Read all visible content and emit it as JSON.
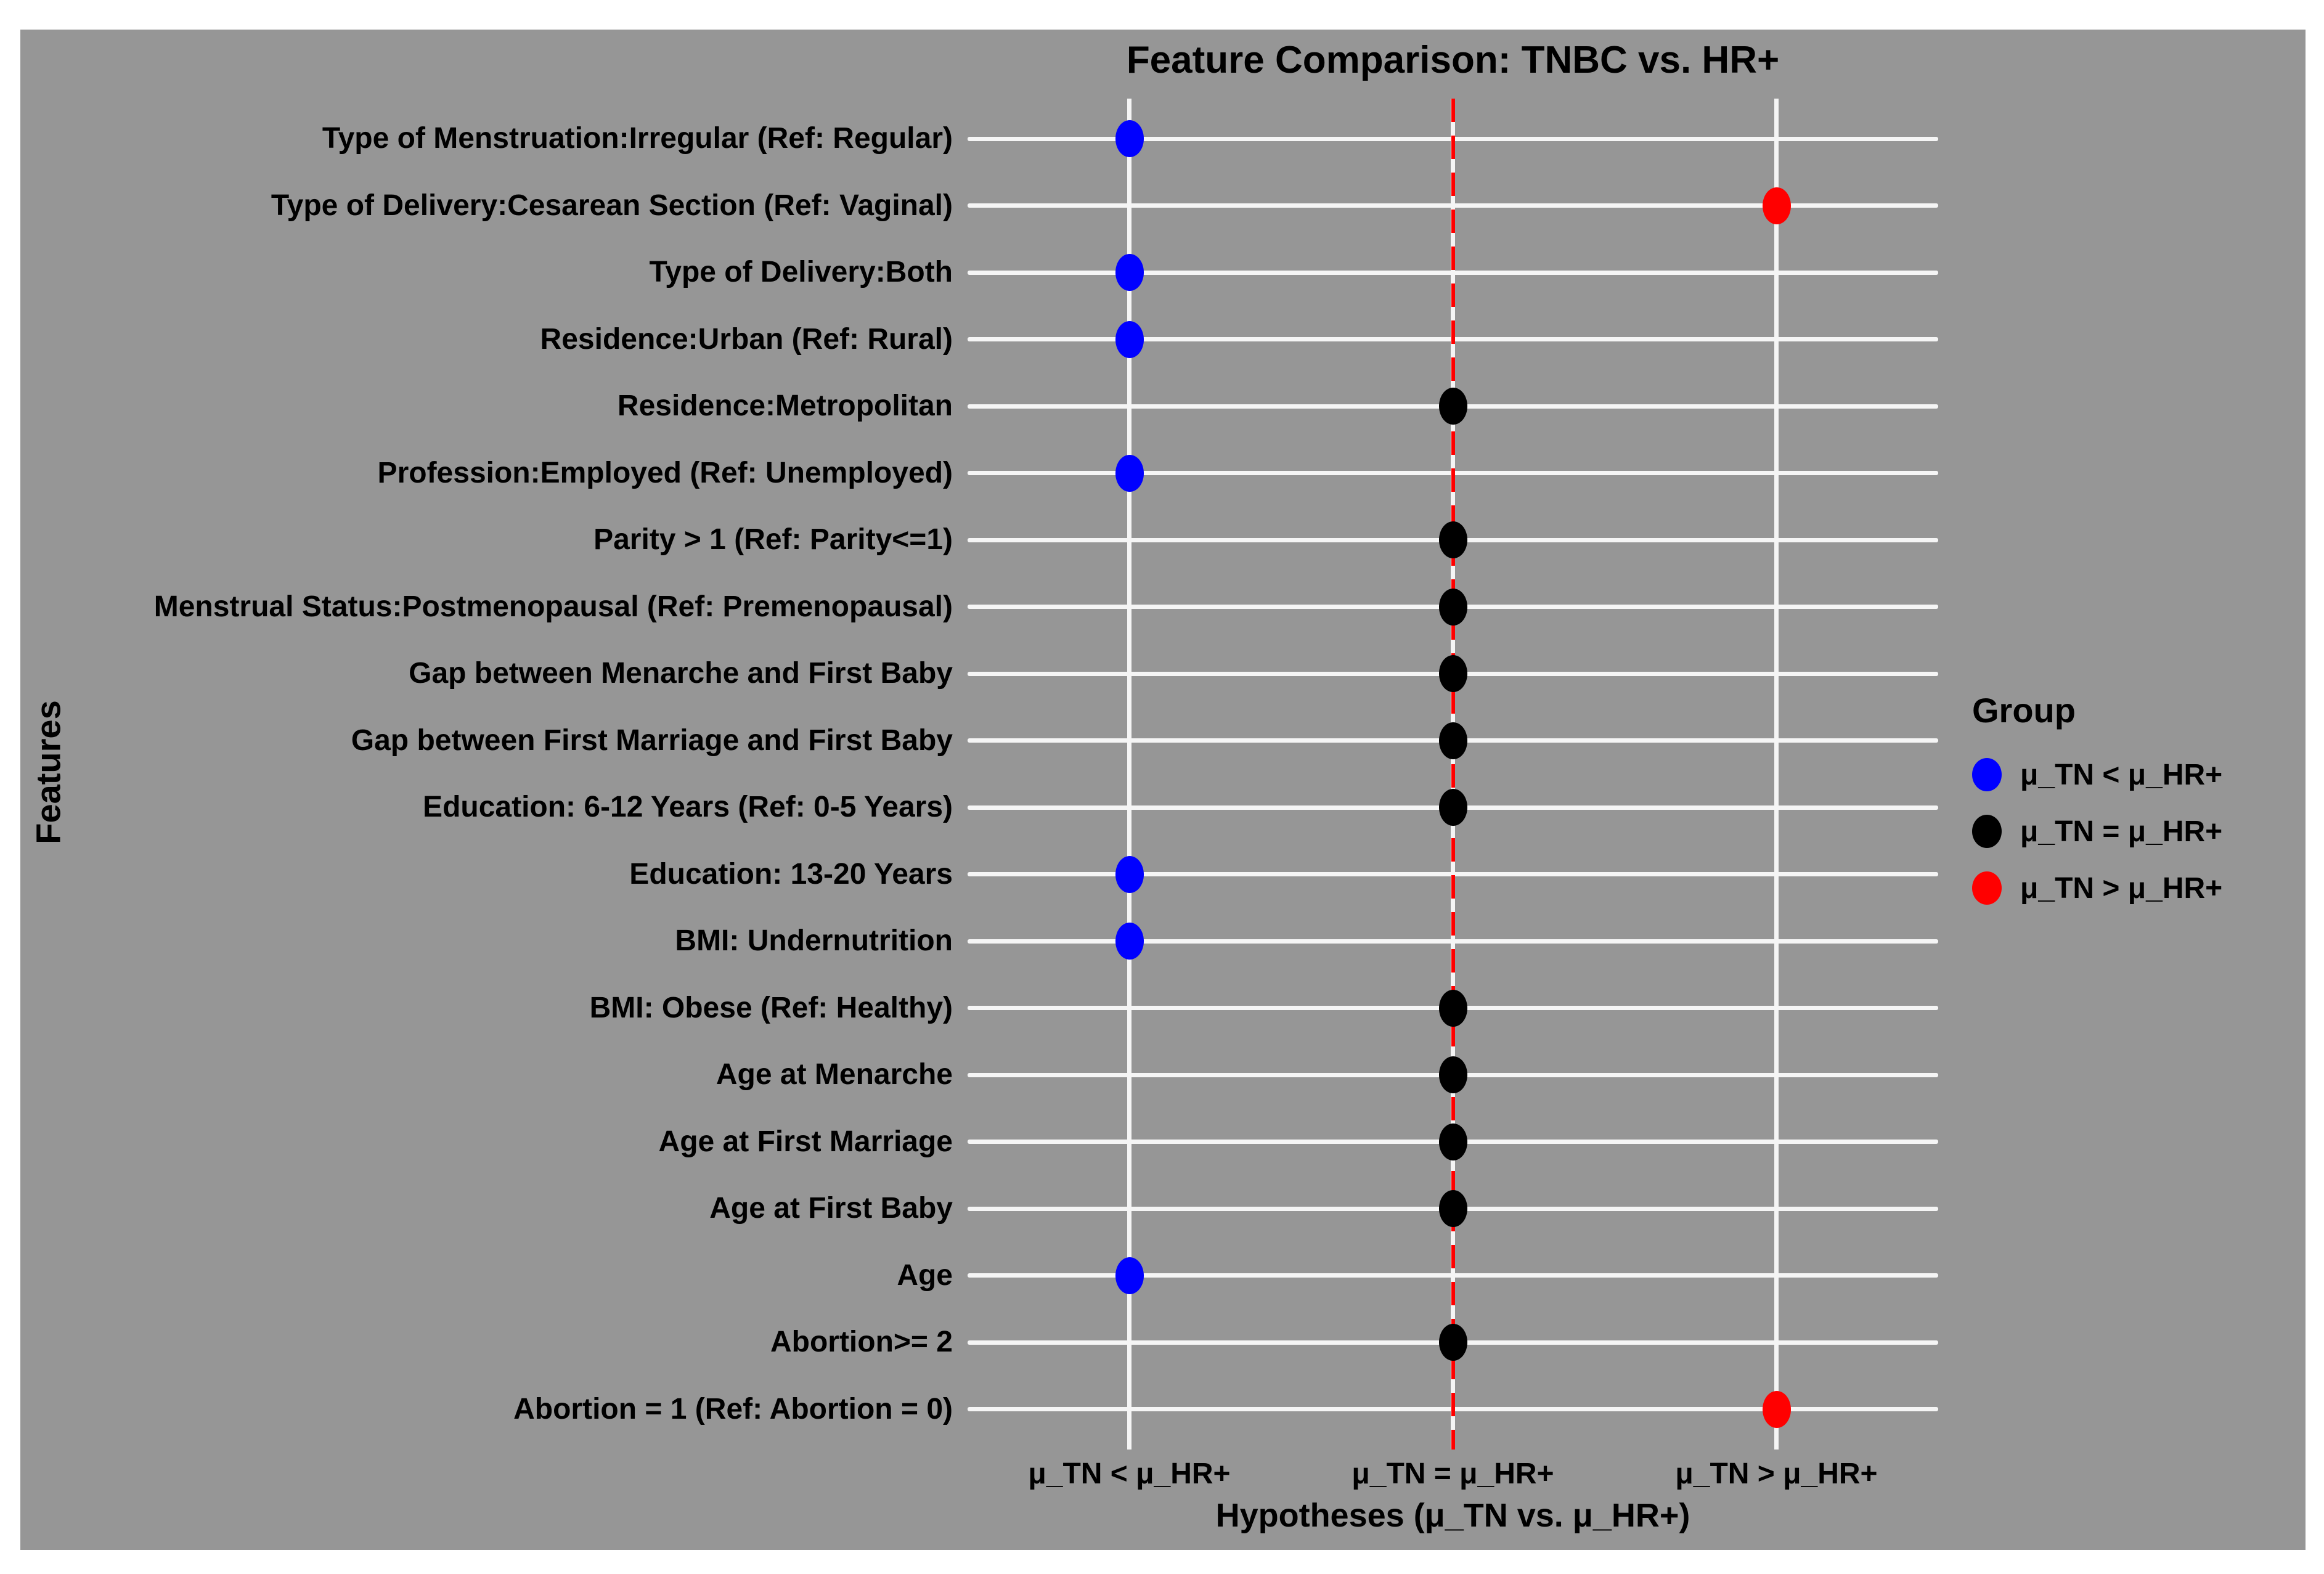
{
  "figure": {
    "title": "Feature Comparison: TNBC vs. HR+",
    "x_axis_title": "Hypotheses (μ_TN vs. μ_HR+)",
    "y_axis_title": "Features"
  },
  "legend": {
    "title": "Group",
    "entries": [
      {
        "key": "less",
        "label": "μ_TN < μ_HR+",
        "color": "#0000ff"
      },
      {
        "key": "equal",
        "label": "μ_TN = μ_HR+",
        "color": "#000000"
      },
      {
        "key": "greater",
        "label": "μ_TN > μ_HR+",
        "color": "#ff0000"
      }
    ]
  },
  "chart_data": {
    "type": "scatter",
    "title": "Feature Comparison: TNBC vs. HR+",
    "xlabel": "Hypotheses (μ_TN vs. μ_HR+)",
    "ylabel": "Features",
    "x_categories": [
      "μ_TN < μ_HR+",
      "μ_TN = μ_HR+",
      "μ_TN > μ_HR+"
    ],
    "x_category_keys": [
      "less",
      "equal",
      "greater"
    ],
    "group_colors": {
      "less": "#0000ff",
      "equal": "#000000",
      "greater": "#ff0000"
    },
    "reference_line": {
      "at_category": "μ_TN = μ_HR+",
      "style": "dashed",
      "color": "#ff0000"
    },
    "layout": {
      "grid": true,
      "legend_position": "right",
      "panel_background": "#969696",
      "gridline_color": "#f5f5f5"
    },
    "points": [
      {
        "feature": "Type of Menstruation:Irregular (Ref: Regular)",
        "hypothesis": "less"
      },
      {
        "feature": "Type of Delivery:Cesarean Section (Ref: Vaginal)",
        "hypothesis": "greater"
      },
      {
        "feature": "Type of Delivery:Both",
        "hypothesis": "less"
      },
      {
        "feature": "Residence:Urban (Ref: Rural)",
        "hypothesis": "less"
      },
      {
        "feature": "Residence:Metropolitan",
        "hypothesis": "equal"
      },
      {
        "feature": "Profession:Employed (Ref: Unemployed)",
        "hypothesis": "less"
      },
      {
        "feature": "Parity > 1 (Ref: Parity<=1)",
        "hypothesis": "equal"
      },
      {
        "feature": "Menstrual Status:Postmenopausal (Ref: Premenopausal)",
        "hypothesis": "equal"
      },
      {
        "feature": "Gap between Menarche and First Baby",
        "hypothesis": "equal"
      },
      {
        "feature": "Gap between First Marriage and First Baby",
        "hypothesis": "equal"
      },
      {
        "feature": "Education: 6-12 Years (Ref: 0-5 Years)",
        "hypothesis": "equal"
      },
      {
        "feature": "Education: 13-20 Years",
        "hypothesis": "less"
      },
      {
        "feature": "BMI: Undernutrition",
        "hypothesis": "less"
      },
      {
        "feature": "BMI: Obese (Ref: Healthy)",
        "hypothesis": "equal"
      },
      {
        "feature": "Age at Menarche",
        "hypothesis": "equal"
      },
      {
        "feature": "Age at First Marriage",
        "hypothesis": "equal"
      },
      {
        "feature": "Age at First Baby",
        "hypothesis": "equal"
      },
      {
        "feature": "Age",
        "hypothesis": "less"
      },
      {
        "feature": "Abortion>= 2",
        "hypothesis": "equal"
      },
      {
        "feature": "Abortion = 1 (Ref: Abortion = 0)",
        "hypothesis": "greater"
      }
    ]
  }
}
